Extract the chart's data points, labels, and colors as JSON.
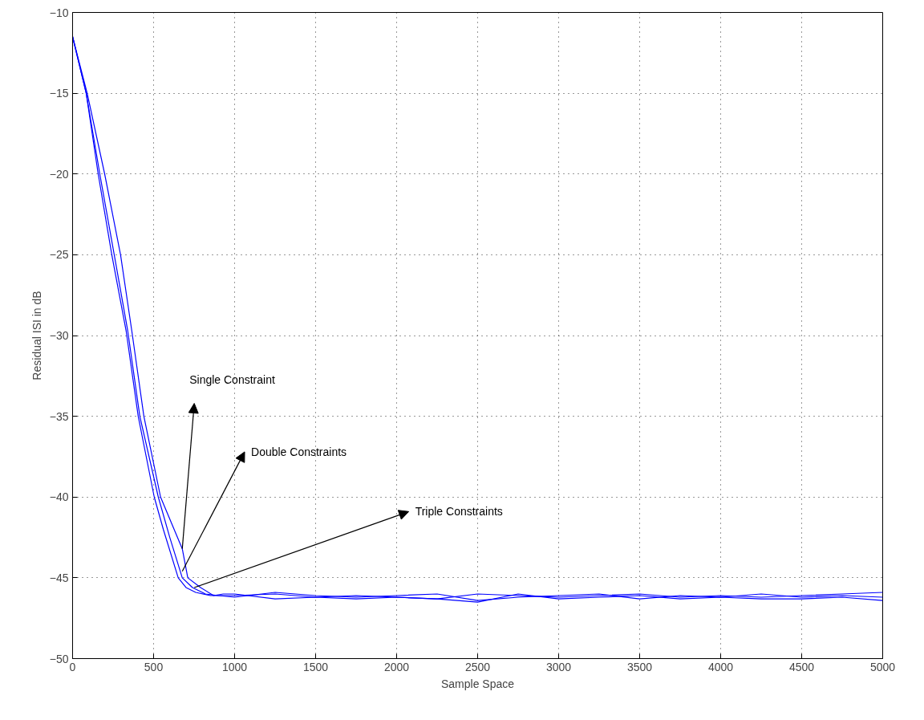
{
  "chart_data": {
    "type": "line",
    "xlabel": "Sample Space",
    "ylabel": "Residual ISI in dB",
    "xlim": [
      0,
      5000
    ],
    "ylim": [
      -50,
      -10
    ],
    "xticks": [
      0,
      500,
      1000,
      1500,
      2000,
      2500,
      3000,
      3500,
      4000,
      4500,
      5000
    ],
    "yticks": [
      -50,
      -45,
      -40,
      -35,
      -30,
      -25,
      -20,
      -15,
      -10
    ],
    "grid": true,
    "line_style": "solid",
    "marker": "none",
    "annotations": [
      "Single Constraint",
      "Double Constraints",
      "Triple Constraints"
    ],
    "series": [
      {
        "color": "#0000ff",
        "x": [
          0,
          84,
          158,
          242,
          331,
          405,
          504,
          560,
          652,
          700,
          760,
          850,
          1000,
          1250,
          1500,
          1750,
          2000,
          2250,
          2500,
          2750,
          3000,
          3250,
          3500,
          3750,
          4000,
          4250,
          4500,
          4750,
          5000
        ],
        "values": [
          -11.5,
          -15,
          -20,
          -25,
          -29.75,
          -35,
          -40,
          -42,
          -45,
          -45.6,
          -45.9,
          -46.1,
          -46.1,
          -46.0,
          -46.2,
          -46.1,
          -46.2,
          -46.3,
          -46.0,
          -46.1,
          -46.2,
          -46.1,
          -46.0,
          -46.2,
          -46.1,
          -46.2,
          -46.1,
          -46.0,
          -45.9
        ]
      },
      {
        "color": "#0000ff",
        "x": [
          0,
          84,
          168,
          257,
          341,
          415,
          529,
          600,
          677,
          740,
          820,
          900,
          1000,
          1250,
          1500,
          1750,
          2000,
          2250,
          2500,
          2750,
          3000,
          3250,
          3500,
          3750,
          4000,
          4250,
          4500,
          4750,
          5000
        ],
        "values": [
          -11.5,
          -15,
          -20,
          -25,
          -29.75,
          -35,
          -40,
          -42.5,
          -45,
          -45.6,
          -46.0,
          -46.1,
          -46.2,
          -45.9,
          -46.1,
          -46.2,
          -46.1,
          -46.0,
          -46.4,
          -46.2,
          -46.1,
          -46.0,
          -46.3,
          -46.1,
          -46.2,
          -46.0,
          -46.2,
          -46.1,
          -46.2
        ]
      },
      {
        "color": "#0000ff",
        "x": [
          0,
          90,
          198,
          296,
          366,
          440,
          543,
          677,
          711,
          790,
          870,
          930,
          1000,
          1250,
          1500,
          1750,
          2000,
          2250,
          2500,
          2750,
          3000,
          3250,
          3500,
          3750,
          4000,
          4250,
          4500,
          4750,
          5000
        ],
        "values": [
          -11.5,
          -15,
          -20,
          -25,
          -29.75,
          -35,
          -40,
          -43.2,
          -45,
          -45.6,
          -46.1,
          -46.0,
          -46.0,
          -46.3,
          -46.2,
          -46.3,
          -46.2,
          -46.3,
          -46.5,
          -46.0,
          -46.3,
          -46.2,
          -46.1,
          -46.3,
          -46.2,
          -46.3,
          -46.3,
          -46.2,
          -46.4
        ]
      }
    ]
  }
}
